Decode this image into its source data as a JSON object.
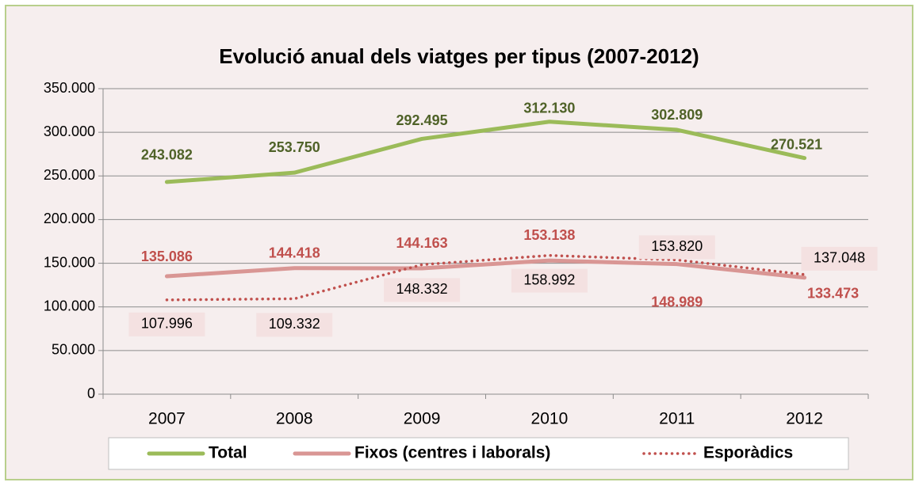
{
  "chart_data": {
    "type": "line",
    "title": "Evolució anual dels viatges per tipus  (2007-2012)",
    "categories": [
      "2007",
      "2008",
      "2009",
      "2010",
      "2011",
      "2012"
    ],
    "series": [
      {
        "name": "Total",
        "color": "#9bbb59",
        "label_color": "#4f6228",
        "style": "solid",
        "values": [
          243082,
          253750,
          292495,
          312130,
          302809,
          270521
        ],
        "value_labels": [
          "243.082",
          "253.750",
          "292.495",
          "312.130",
          "302.809",
          "270.521"
        ]
      },
      {
        "name": "Fixos (centres i laborals)",
        "color": "#d99694",
        "label_color": "#c0504d",
        "style": "solid",
        "values": [
          135086,
          144418,
          144163,
          153138,
          148989,
          133473
        ],
        "value_labels": [
          "135.086",
          "144.418",
          "144.163",
          "153.138",
          "148.989",
          "133.473"
        ]
      },
      {
        "name": "Esporàdics",
        "color": "#c0504d",
        "label_color": "#000000",
        "style": "dotted",
        "values": [
          107996,
          109332,
          148332,
          158992,
          153820,
          137048
        ],
        "value_labels": [
          "107.996",
          "109.332",
          "148.332",
          "158.992",
          "153.820",
          "137.048"
        ]
      }
    ],
    "ylim": [
      0,
      350000
    ],
    "yticks": [
      0,
      {
        "value": 50000,
        "label": "50.000"
      },
      {
        "value": 100000,
        "label": "100.000"
      },
      {
        "value": 150000,
        "label": "150.000"
      },
      {
        "value": 200000,
        "label": "200.000"
      },
      {
        "value": 250000,
        "label": "250.000"
      },
      {
        "value": 300000,
        "label": "300.000"
      },
      {
        "value": 350000,
        "label": "350.000"
      }
    ],
    "grid": true,
    "legend": "bottom"
  }
}
